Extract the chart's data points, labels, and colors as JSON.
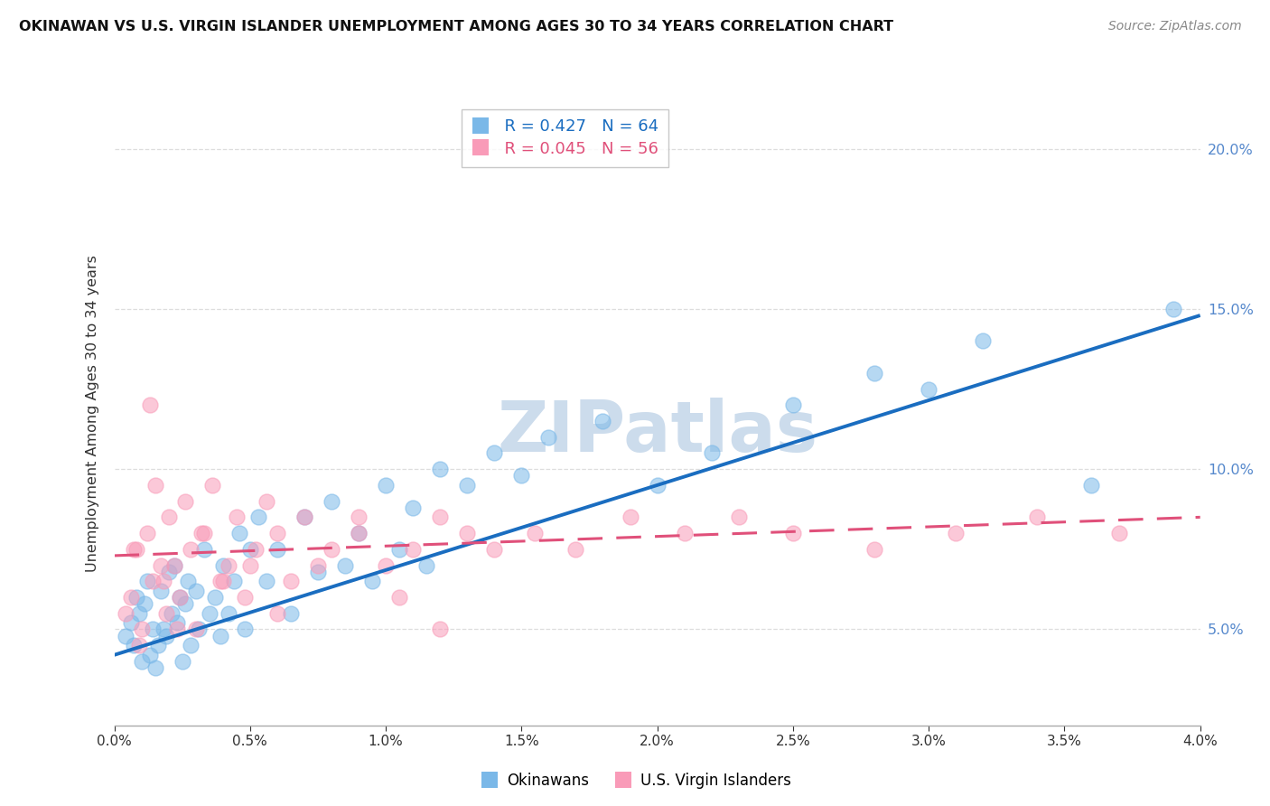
{
  "title": "OKINAWAN VS U.S. VIRGIN ISLANDER UNEMPLOYMENT AMONG AGES 30 TO 34 YEARS CORRELATION CHART",
  "source": "Source: ZipAtlas.com",
  "ylabel": "Unemployment Among Ages 30 to 34 years",
  "xmin": 0.0,
  "xmax": 4.0,
  "ymin": 2.0,
  "ymax": 21.5,
  "yticks": [
    5.0,
    10.0,
    15.0,
    20.0
  ],
  "xticks": [
    0.0,
    0.5,
    1.0,
    1.5,
    2.0,
    2.5,
    3.0,
    3.5,
    4.0
  ],
  "legend_r_ok": "R = 0.427",
  "legend_n_ok": "N = 64",
  "legend_r_vi": "R = 0.045",
  "legend_n_vi": "N = 56",
  "legend_label_ok": "Okinawans",
  "legend_label_vi": "U.S. Virgin Islanders",
  "okinawan_color": "#7ab8e8",
  "virgin_islander_color": "#f99bb8",
  "blue_line_color": "#1a6dc0",
  "pink_line_color": "#e0507a",
  "watermark_text": "ZIPatlas",
  "watermark_color": "#ccdcec",
  "background_color": "#ffffff",
  "grid_color": "#dddddd",
  "ok_x": [
    0.04,
    0.06,
    0.07,
    0.08,
    0.09,
    0.1,
    0.11,
    0.12,
    0.13,
    0.14,
    0.15,
    0.16,
    0.17,
    0.18,
    0.19,
    0.2,
    0.21,
    0.22,
    0.23,
    0.24,
    0.25,
    0.26,
    0.27,
    0.28,
    0.3,
    0.31,
    0.33,
    0.35,
    0.37,
    0.39,
    0.4,
    0.42,
    0.44,
    0.46,
    0.48,
    0.5,
    0.53,
    0.56,
    0.6,
    0.65,
    0.7,
    0.75,
    0.8,
    0.85,
    0.9,
    0.95,
    1.0,
    1.05,
    1.1,
    1.15,
    1.2,
    1.3,
    1.4,
    1.5,
    1.6,
    1.8,
    2.0,
    2.2,
    2.5,
    2.8,
    3.0,
    3.2,
    3.6,
    3.9
  ],
  "ok_y": [
    4.8,
    5.2,
    4.5,
    6.0,
    5.5,
    4.0,
    5.8,
    6.5,
    4.2,
    5.0,
    3.8,
    4.5,
    6.2,
    5.0,
    4.8,
    6.8,
    5.5,
    7.0,
    5.2,
    6.0,
    4.0,
    5.8,
    6.5,
    4.5,
    6.2,
    5.0,
    7.5,
    5.5,
    6.0,
    4.8,
    7.0,
    5.5,
    6.5,
    8.0,
    5.0,
    7.5,
    8.5,
    6.5,
    7.5,
    5.5,
    8.5,
    6.8,
    9.0,
    7.0,
    8.0,
    6.5,
    9.5,
    7.5,
    8.8,
    7.0,
    10.0,
    9.5,
    10.5,
    9.8,
    11.0,
    11.5,
    9.5,
    10.5,
    12.0,
    13.0,
    12.5,
    14.0,
    9.5,
    15.0
  ],
  "vi_x": [
    0.04,
    0.06,
    0.07,
    0.09,
    0.1,
    0.12,
    0.14,
    0.15,
    0.17,
    0.19,
    0.2,
    0.22,
    0.24,
    0.26,
    0.28,
    0.3,
    0.33,
    0.36,
    0.39,
    0.42,
    0.45,
    0.48,
    0.52,
    0.56,
    0.6,
    0.65,
    0.7,
    0.8,
    0.9,
    1.0,
    1.1,
    1.2,
    1.3,
    1.4,
    1.55,
    1.7,
    1.9,
    2.1,
    2.3,
    2.5,
    2.8,
    3.1,
    3.4,
    3.7,
    0.08,
    0.13,
    0.18,
    0.23,
    0.32,
    0.4,
    0.5,
    0.6,
    0.75,
    0.9,
    1.05,
    1.2
  ],
  "vi_y": [
    5.5,
    6.0,
    7.5,
    4.5,
    5.0,
    8.0,
    6.5,
    9.5,
    7.0,
    5.5,
    8.5,
    7.0,
    6.0,
    9.0,
    7.5,
    5.0,
    8.0,
    9.5,
    6.5,
    7.0,
    8.5,
    6.0,
    7.5,
    9.0,
    8.0,
    6.5,
    8.5,
    7.5,
    8.0,
    7.0,
    7.5,
    8.5,
    8.0,
    7.5,
    8.0,
    7.5,
    8.5,
    8.0,
    8.5,
    8.0,
    7.5,
    8.0,
    8.5,
    8.0,
    7.5,
    12.0,
    6.5,
    5.0,
    8.0,
    6.5,
    7.0,
    5.5,
    7.0,
    8.5,
    6.0,
    5.0
  ],
  "blue_line_x0": 0.0,
  "blue_line_y0": 4.2,
  "blue_line_x1": 4.0,
  "blue_line_y1": 14.8,
  "pink_line_x0": 0.0,
  "pink_line_y0": 7.3,
  "pink_line_x1": 4.0,
  "pink_line_y1": 8.5
}
